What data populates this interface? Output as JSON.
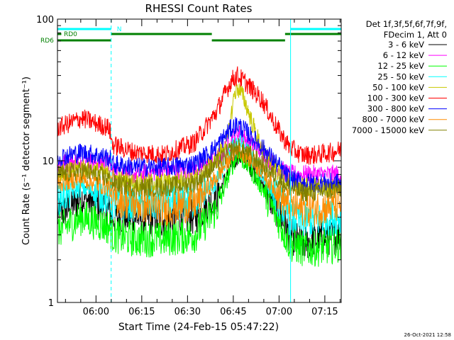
{
  "chart_data": {
    "type": "line",
    "title": "RHESSI Count Rates",
    "xlabel": "Start Time (24-Feb-15 05:47:22)",
    "ylabel": "Count Rate (s⁻¹ detector segment⁻¹)",
    "yscale": "log",
    "ylim": [
      1,
      100
    ],
    "xlim_minutes": [
      0,
      93
    ],
    "x_tick_labels": [
      "06:00",
      "06:15",
      "06:30",
      "06:45",
      "07:00",
      "07:15"
    ],
    "x_tick_minutes": [
      12.63,
      27.63,
      42.63,
      57.63,
      72.63,
      87.63
    ],
    "y_tick_labels": [
      "1",
      "10",
      "100"
    ],
    "y_tick_values": [
      1,
      10,
      100
    ],
    "legend_header": [
      "Det 1f,3f,5f,6f,7f,9f,",
      "FDecim 1, Att 0"
    ],
    "legend_placement": "right",
    "timestamp": "26-Oct-2021 12:58",
    "state_bars": {
      "N": {
        "label": "N",
        "color": "#00ffff",
        "segments": [
          [
            0,
            17.6
          ],
          [
            76.4,
            93
          ]
        ]
      },
      "RD0": {
        "label": "RD0",
        "color": "#008000",
        "segments": [
          [
            0,
            0.8
          ]
        ]
      },
      "RD6": {
        "label": "RD6",
        "color": "#008000",
        "segments": [
          [
            0,
            17.6
          ],
          [
            17.6,
            50.6
          ],
          [
            50.6,
            74.6
          ],
          [
            74.6,
            93
          ]
        ]
      }
    },
    "vlines_minutes": [
      0,
      17.6,
      76.4,
      93
    ],
    "series": [
      {
        "name": "3 - 6 keV",
        "color": "#000000",
        "minutes": [
          0,
          8,
          17,
          18,
          25,
          35,
          45,
          52,
          57,
          59,
          62,
          67,
          72,
          76,
          80,
          85,
          90,
          93
        ],
        "values": [
          4.0,
          5.5,
          4.5,
          4.0,
          4.0,
          3.8,
          4.0,
          5.5,
          9.0,
          11.0,
          10.0,
          7.0,
          4.5,
          3.0,
          2.6,
          2.8,
          2.9,
          3.0
        ]
      },
      {
        "name": "6 - 12 keV",
        "color": "#ff00ff",
        "minutes": [
          0,
          8,
          17,
          18,
          25,
          35,
          45,
          52,
          57,
          59,
          62,
          67,
          72,
          76,
          80,
          85,
          90,
          93
        ],
        "values": [
          9.5,
          10.0,
          9.5,
          8.5,
          8.0,
          8.5,
          8.5,
          10.0,
          14.0,
          16.0,
          14.0,
          11.5,
          9.0,
          8.0,
          8.0,
          8.0,
          8.0,
          8.0
        ]
      },
      {
        "name": "12 - 25 keV",
        "color": "#00ff00",
        "minutes": [
          0,
          8,
          17,
          18,
          25,
          35,
          45,
          52,
          57,
          59,
          62,
          67,
          72,
          76,
          80,
          85,
          90,
          93
        ],
        "values": [
          3.2,
          4.0,
          3.4,
          3.0,
          2.8,
          2.8,
          3.0,
          4.5,
          9.0,
          11.0,
          9.5,
          6.5,
          4.0,
          2.6,
          2.4,
          2.4,
          2.5,
          2.6
        ]
      },
      {
        "name": "25 - 50 keV",
        "color": "#00ffff",
        "minutes": [
          0,
          8,
          17,
          18,
          25,
          35,
          45,
          52,
          57,
          59,
          62,
          67,
          72,
          76,
          80,
          85,
          90,
          93
        ],
        "values": [
          5.5,
          6.5,
          5.5,
          5.0,
          5.0,
          5.0,
          5.2,
          7.0,
          12.0,
          14.0,
          12.0,
          8.0,
          5.5,
          4.0,
          3.8,
          3.8,
          4.0,
          4.0
        ]
      },
      {
        "name": "50 - 100 keV",
        "color": "#c8c800",
        "minutes": [
          0,
          8,
          17,
          18,
          25,
          35,
          45,
          52,
          56,
          58,
          59,
          61,
          64,
          67,
          72,
          76,
          80,
          85,
          90,
          93
        ],
        "values": [
          8.0,
          9.0,
          8.0,
          7.5,
          7.0,
          7.0,
          7.5,
          10.0,
          15.0,
          30.0,
          33.0,
          28.0,
          18.0,
          12.0,
          8.5,
          7.0,
          6.5,
          6.5,
          6.5,
          6.5
        ]
      },
      {
        "name": "100 - 300 keV",
        "color": "#ff0000",
        "minutes": [
          0,
          8,
          17,
          18,
          25,
          35,
          45,
          52,
          57,
          59,
          62,
          67,
          72,
          76,
          80,
          85,
          90,
          93
        ],
        "values": [
          17.0,
          20.0,
          17.0,
          13.0,
          11.5,
          11.0,
          13.5,
          22.0,
          37.0,
          40.0,
          35.0,
          27.0,
          17.0,
          12.5,
          11.0,
          11.0,
          11.5,
          12.0
        ]
      },
      {
        "name": "300 - 800 keV",
        "color": "#0000ff",
        "minutes": [
          0,
          8,
          17,
          18,
          25,
          35,
          45,
          52,
          57,
          59,
          62,
          67,
          72,
          76,
          80,
          85,
          90,
          93
        ],
        "values": [
          10.5,
          11.5,
          10.5,
          9.5,
          9.0,
          9.0,
          9.5,
          12.5,
          17.0,
          18.0,
          16.0,
          12.5,
          9.5,
          7.5,
          7.0,
          7.0,
          7.0,
          7.0
        ]
      },
      {
        "name": "800 - 7000 keV",
        "color": "#ff8c00",
        "minutes": [
          0,
          8,
          17,
          18,
          25,
          35,
          45,
          52,
          57,
          59,
          62,
          67,
          72,
          76,
          80,
          85,
          90,
          93
        ],
        "values": [
          7.0,
          7.5,
          6.5,
          5.5,
          5.0,
          4.6,
          5.0,
          7.5,
          11.0,
          12.0,
          11.0,
          8.5,
          6.0,
          4.8,
          4.6,
          4.6,
          4.8,
          5.0
        ]
      },
      {
        "name": "7000 - 15000 keV",
        "color": "#808000",
        "minutes": [
          0,
          8,
          17,
          18,
          25,
          35,
          45,
          52,
          57,
          59,
          62,
          67,
          72,
          76,
          80,
          85,
          90,
          93
        ],
        "values": [
          8.0,
          8.5,
          7.5,
          7.0,
          6.5,
          6.5,
          7.0,
          9.5,
          12.0,
          12.5,
          11.5,
          9.5,
          7.5,
          6.5,
          6.0,
          6.0,
          6.2,
          6.3
        ]
      }
    ]
  }
}
